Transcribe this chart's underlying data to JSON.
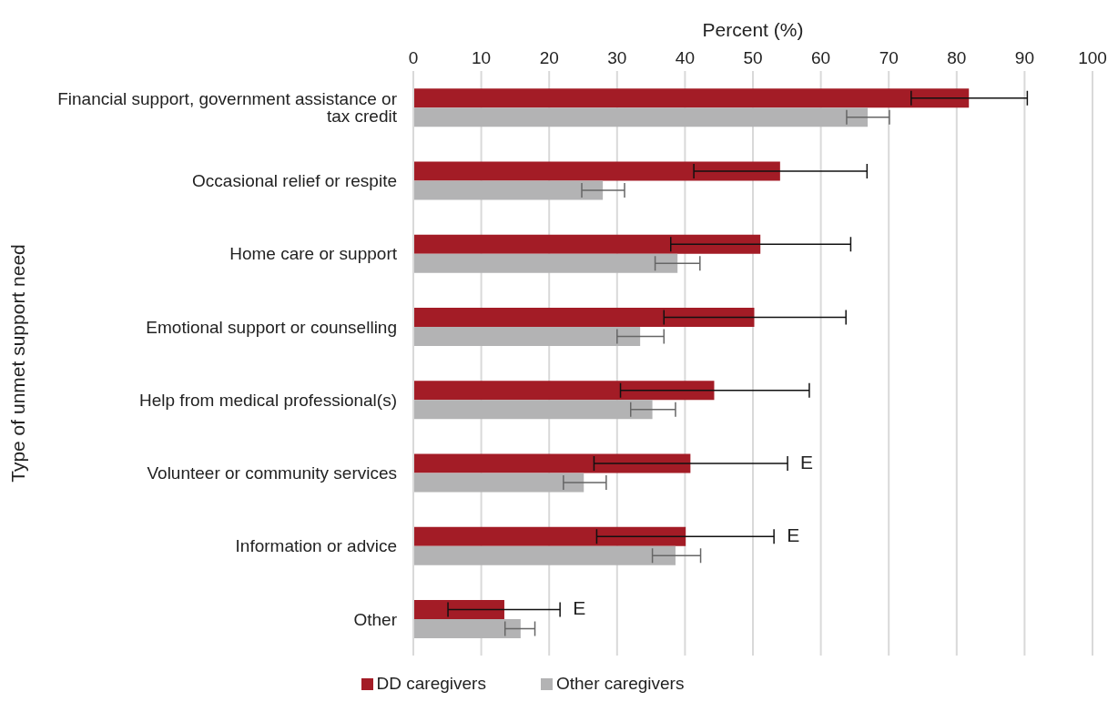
{
  "chart_data": {
    "type": "bar",
    "orientation": "horizontal",
    "xlabel": "Percent (%)",
    "ylabel": "Type of unmet support need",
    "categories": [
      "Financial support, government assistance or tax credit",
      "Occasional relief or respite",
      "Home care or support",
      "Emotional support or counselling",
      "Help from medical professional(s)",
      "Volunteer or community services",
      "Information or advice",
      "Other"
    ],
    "series": [
      {
        "name": "DD caregivers",
        "color": "#a31c26",
        "values": [
          81.8,
          54.0,
          51.1,
          50.2,
          44.3,
          40.8,
          40.1,
          13.4
        ],
        "errors": [
          [
            73.3,
            90.4
          ],
          [
            41.3,
            66.8
          ],
          [
            37.9,
            64.4
          ],
          [
            36.9,
            63.7
          ],
          [
            30.5,
            58.3
          ],
          [
            26.6,
            55.1
          ],
          [
            27.0,
            53.1
          ],
          [
            5.1,
            21.6
          ]
        ]
      },
      {
        "name": "Other caregivers",
        "color": "#b3b3b4",
        "values": [
          66.9,
          27.9,
          38.9,
          33.4,
          35.2,
          25.1,
          38.6,
          15.8
        ],
        "errors": [
          [
            63.8,
            70.1
          ],
          [
            24.8,
            31.1
          ],
          [
            35.6,
            42.2
          ],
          [
            30.0,
            36.9
          ],
          [
            32.0,
            38.6
          ],
          [
            22.1,
            28.4
          ],
          [
            35.2,
            42.3
          ],
          [
            13.5,
            17.9
          ]
        ]
      }
    ],
    "xlim": [
      0,
      100
    ],
    "xticks": [
      0,
      10,
      20,
      30,
      40,
      50,
      60,
      70,
      80,
      90,
      100
    ],
    "grid": "x",
    "legend": "bottom",
    "annotations": [
      {
        "text": "E",
        "x": 55.1,
        "y": "Volunteer or community services"
      },
      {
        "text": "E",
        "x": 53.1,
        "y": "Information or advice"
      },
      {
        "text": "E",
        "x": 21.6,
        "y": "Other"
      }
    ]
  }
}
